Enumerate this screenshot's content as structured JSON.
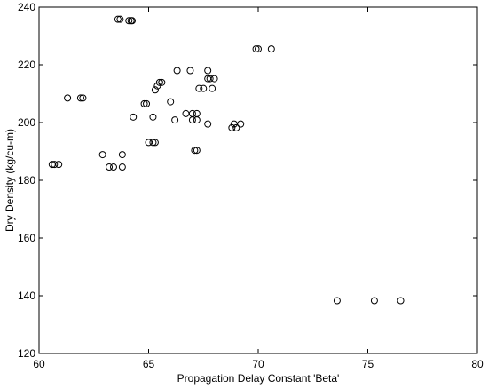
{
  "chart_data": {
    "type": "scatter",
    "title": "",
    "xlabel": "Propagation Delay Constant 'Beta'",
    "ylabel": "Dry Density (kg/cu-m)",
    "xlim": [
      60,
      80
    ],
    "ylim": [
      120,
      240
    ],
    "xticks": [
      60,
      65,
      70,
      75,
      80
    ],
    "yticks": [
      120,
      140,
      160,
      180,
      200,
      220,
      240
    ],
    "xtick_labels": [
      "60",
      "65",
      "70",
      "75",
      "80"
    ],
    "ytick_labels": [
      "120",
      "140",
      "160",
      "180",
      "200",
      "220",
      "240"
    ],
    "grid": false,
    "marker": "open-circle",
    "marker_color": "#000000",
    "series": [
      {
        "points": [
          [
            63.6,
            235.8
          ],
          [
            63.7,
            235.8
          ],
          [
            64.1,
            235.3
          ],
          [
            64.2,
            235.3
          ],
          [
            64.25,
            235.3
          ],
          [
            69.9,
            225.5
          ],
          [
            70.0,
            225.5
          ],
          [
            70.6,
            225.5
          ],
          [
            66.3,
            218.0
          ],
          [
            66.9,
            218.0
          ],
          [
            67.7,
            218.0
          ],
          [
            67.7,
            215.2
          ],
          [
            67.8,
            215.2
          ],
          [
            68.0,
            215.2
          ],
          [
            65.5,
            213.9
          ],
          [
            65.6,
            213.9
          ],
          [
            65.4,
            212.7
          ],
          [
            65.3,
            211.3
          ],
          [
            67.3,
            211.8
          ],
          [
            67.5,
            211.8
          ],
          [
            67.9,
            211.8
          ],
          [
            61.3,
            208.5
          ],
          [
            61.9,
            208.5
          ],
          [
            62.0,
            208.5
          ],
          [
            64.8,
            206.5
          ],
          [
            64.9,
            206.5
          ],
          [
            66.0,
            207.2
          ],
          [
            64.3,
            201.9
          ],
          [
            65.2,
            201.9
          ],
          [
            66.2,
            200.9
          ],
          [
            66.7,
            203.1
          ],
          [
            67.0,
            203.1
          ],
          [
            67.2,
            203.1
          ],
          [
            67.0,
            200.9
          ],
          [
            67.2,
            200.9
          ],
          [
            67.7,
            199.5
          ],
          [
            68.8,
            198.2
          ],
          [
            69.0,
            198.2
          ],
          [
            68.9,
            199.5
          ],
          [
            69.2,
            199.5
          ],
          [
            65.0,
            193.1
          ],
          [
            65.2,
            193.1
          ],
          [
            65.3,
            193.1
          ],
          [
            67.1,
            190.4
          ],
          [
            67.2,
            190.4
          ],
          [
            62.9,
            188.9
          ],
          [
            63.8,
            188.9
          ],
          [
            63.2,
            184.6
          ],
          [
            63.4,
            184.6
          ],
          [
            63.8,
            184.6
          ],
          [
            60.6,
            185.5
          ],
          [
            60.7,
            185.5
          ],
          [
            60.9,
            185.5
          ],
          [
            73.6,
            138.3
          ],
          [
            75.3,
            138.3
          ],
          [
            76.5,
            138.3
          ]
        ]
      }
    ]
  }
}
